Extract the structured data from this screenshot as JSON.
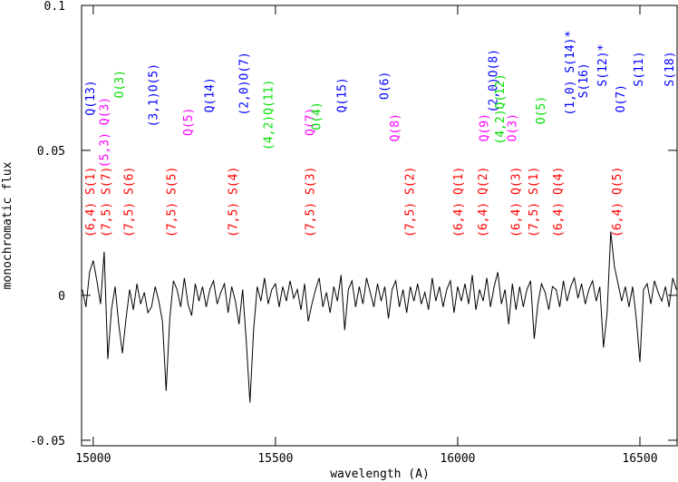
{
  "chart_data": {
    "type": "line",
    "x_label": "wavelength (A)",
    "y_label": "monochromatic flux",
    "xlim": [
      14968,
      16602
    ],
    "ylim": [
      -0.0519,
      0.1
    ],
    "xticks": [
      15000,
      15500,
      16000,
      16500
    ],
    "yticks": [
      -0.05,
      0,
      0.05,
      0.1
    ],
    "line_color": "#000000",
    "x": [
      14970,
      14980,
      14990,
      15000,
      15010,
      15020,
      15030,
      15040,
      15050,
      15060,
      15070,
      15080,
      15090,
      15100,
      15110,
      15120,
      15130,
      15140,
      15150,
      15160,
      15170,
      15180,
      15190,
      15200,
      15210,
      15220,
      15230,
      15240,
      15250,
      15260,
      15270,
      15280,
      15290,
      15300,
      15310,
      15320,
      15330,
      15340,
      15350,
      15360,
      15370,
      15380,
      15390,
      15400,
      15410,
      15420,
      15430,
      15440,
      15450,
      15460,
      15470,
      15480,
      15490,
      15500,
      15510,
      15520,
      15530,
      15540,
      15550,
      15560,
      15570,
      15580,
      15590,
      15600,
      15610,
      15620,
      15630,
      15640,
      15650,
      15660,
      15670,
      15680,
      15690,
      15700,
      15710,
      15720,
      15730,
      15740,
      15750,
      15760,
      15770,
      15780,
      15790,
      15800,
      15810,
      15820,
      15830,
      15840,
      15850,
      15860,
      15870,
      15880,
      15890,
      15900,
      15910,
      15920,
      15930,
      15940,
      15950,
      15960,
      15970,
      15980,
      15990,
      16000,
      16010,
      16020,
      16030,
      16040,
      16050,
      16060,
      16070,
      16080,
      16090,
      16100,
      16110,
      16120,
      16130,
      16140,
      16150,
      16160,
      16170,
      16180,
      16190,
      16200,
      16210,
      16220,
      16230,
      16240,
      16250,
      16260,
      16270,
      16280,
      16290,
      16300,
      16310,
      16320,
      16330,
      16340,
      16350,
      16360,
      16370,
      16380,
      16390,
      16400,
      16410,
      16420,
      16430,
      16440,
      16450,
      16460,
      16470,
      16480,
      16490,
      16500,
      16510,
      16520,
      16530,
      16540,
      16550,
      16560,
      16570,
      16580,
      16590,
      16600
    ],
    "values": [
      0.002,
      -0.004,
      0.008,
      0.012,
      0.005,
      -0.003,
      0.015,
      -0.022,
      -0.005,
      0.003,
      -0.01,
      -0.02,
      -0.008,
      0.002,
      -0.005,
      0.004,
      -0.003,
      0.001,
      -0.006,
      -0.004,
      0.003,
      -0.002,
      -0.009,
      -0.033,
      -0.008,
      0.005,
      0.002,
      -0.004,
      0.006,
      -0.003,
      -0.007,
      0.004,
      -0.002,
      0.003,
      -0.004,
      0.002,
      0.005,
      -0.003,
      0.001,
      0.004,
      -0.006,
      0.003,
      -0.002,
      -0.01,
      0.002,
      -0.016,
      -0.037,
      -0.012,
      0.003,
      -0.002,
      0.006,
      -0.003,
      0.002,
      0.004,
      -0.004,
      0.003,
      -0.002,
      0.005,
      -0.001,
      0.002,
      -0.005,
      0.004,
      -0.009,
      -0.003,
      0.002,
      0.006,
      -0.004,
      0.001,
      -0.006,
      0.003,
      -0.002,
      0.007,
      -0.012,
      0.002,
      0.005,
      -0.004,
      0.003,
      -0.003,
      0.006,
      0.001,
      -0.004,
      0.004,
      -0.002,
      0.003,
      -0.008,
      0.002,
      0.005,
      -0.004,
      0.002,
      -0.006,
      0.003,
      -0.002,
      0.004,
      -0.003,
      0.001,
      -0.005,
      0.006,
      -0.002,
      0.003,
      -0.004,
      0.002,
      0.005,
      -0.006,
      0.003,
      -0.002,
      0.004,
      -0.003,
      0.007,
      -0.005,
      0.002,
      -0.002,
      0.006,
      -0.004,
      0.003,
      0.008,
      -0.003,
      0.002,
      -0.01,
      0.004,
      -0.005,
      0.003,
      -0.004,
      0.002,
      0.005,
      -0.015,
      -0.003,
      0.004,
      0.001,
      -0.005,
      0.003,
      0.002,
      -0.004,
      0.005,
      -0.002,
      0.003,
      0.006,
      -0.001,
      0.004,
      -0.003,
      0.002,
      0.005,
      -0.002,
      0.003,
      -0.018,
      -0.006,
      0.022,
      0.01,
      0.004,
      -0.002,
      0.003,
      -0.004,
      0.003,
      -0.008,
      -0.023,
      0.002,
      0.004,
      -0.003,
      0.005,
      0.001,
      -0.002,
      0.003,
      -0.004,
      0.006,
      0.002
    ],
    "annotations": [
      {
        "text": "(6,4) S(1)",
        "x": 14993,
        "y": 0.02,
        "color": "#ff0000"
      },
      {
        "text": "(7,5) S(7)",
        "x": 15037,
        "y": 0.02,
        "color": "#ff0000"
      },
      {
        "text": "(7,5) S(6)",
        "x": 15099,
        "y": 0.02,
        "color": "#ff0000"
      },
      {
        "text": "(7,5) S(5)",
        "x": 15216,
        "y": 0.02,
        "color": "#ff0000"
      },
      {
        "text": "(7,5) S(4)",
        "x": 15385,
        "y": 0.02,
        "color": "#ff0000"
      },
      {
        "text": "(7,5) S(3)",
        "x": 15596,
        "y": 0.02,
        "color": "#ff0000"
      },
      {
        "text": "(7,5) S(2)",
        "x": 15869,
        "y": 0.02,
        "color": "#ff0000"
      },
      {
        "text": "(6,4) Q(1)",
        "x": 16003,
        "y": 0.02,
        "color": "#ff0000"
      },
      {
        "text": "(6,4) Q(2)",
        "x": 16070,
        "y": 0.02,
        "color": "#ff0000"
      },
      {
        "text": "(6,4) Q(3)",
        "x": 16160,
        "y": 0.02,
        "color": "#ff0000"
      },
      {
        "text": "(7,5) S(1)",
        "x": 16209,
        "y": 0.02,
        "color": "#ff0000"
      },
      {
        "text": "(6,4) Q(4)",
        "x": 16276,
        "y": 0.02,
        "color": "#ff0000"
      },
      {
        "text": "(6,4) Q(5)",
        "x": 16438,
        "y": 0.02,
        "color": "#ff0000"
      },
      {
        "text": "Q(13)",
        "x": 14993,
        "y": 0.062,
        "color": "#0000ff"
      },
      {
        "text": "(3,1)O(5)",
        "x": 15166,
        "y": 0.058,
        "color": "#0000ff"
      },
      {
        "text": "Q(14)",
        "x": 15320,
        "y": 0.063,
        "color": "#0000ff"
      },
      {
        "text": "(2,0)O(7)",
        "x": 15415,
        "y": 0.062,
        "color": "#0000ff"
      },
      {
        "text": "Q(15)",
        "x": 15683,
        "y": 0.063,
        "color": "#0000ff"
      },
      {
        "text": "O(6)",
        "x": 15800,
        "y": 0.0675,
        "color": "#0000ff"
      },
      {
        "text": "(2,0)O(8)",
        "x": 16098,
        "y": 0.063,
        "color": "#0000ff"
      },
      {
        "text": "(1,0) S(14)*",
        "x": 16309,
        "y": 0.062,
        "color": "#0000ff"
      },
      {
        "text": "S(16)",
        "x": 16346,
        "y": 0.068,
        "color": "#0000ff"
      },
      {
        "text": "S(12)*",
        "x": 16398,
        "y": 0.072,
        "color": "#0000ff"
      },
      {
        "text": "O(7)",
        "x": 16448,
        "y": 0.063,
        "color": "#0000ff"
      },
      {
        "text": "S(11)",
        "x": 16497,
        "y": 0.072,
        "color": "#0000ff"
      },
      {
        "text": "S(18)",
        "x": 16582,
        "y": 0.072,
        "color": "#0000ff"
      },
      {
        "text": "(5,3) Q(3)",
        "x": 15032,
        "y": 0.044,
        "color": "#ff00ff"
      },
      {
        "text": "Q(5)",
        "x": 15261,
        "y": 0.055,
        "color": "#ff00ff"
      },
      {
        "text": "Q(7)",
        "x": 15596,
        "y": 0.055,
        "color": "#ff00ff"
      },
      {
        "text": "Q(8)",
        "x": 15829,
        "y": 0.053,
        "color": "#ff00ff"
      },
      {
        "text": "Q(9)",
        "x": 16073,
        "y": 0.053,
        "color": "#ff00ff"
      },
      {
        "text": "O(3)",
        "x": 16150,
        "y": 0.053,
        "color": "#ff00ff"
      },
      {
        "text": "O(3)",
        "x": 15072,
        "y": 0.068,
        "color": "#00e000"
      },
      {
        "text": "(4,2)Q(11)",
        "x": 15482,
        "y": 0.05,
        "color": "#00e000"
      },
      {
        "text": "O(4)",
        "x": 15613,
        "y": 0.057,
        "color": "#00e000"
      },
      {
        "text": "(4,2)Q(12)",
        "x": 16117,
        "y": 0.052,
        "color": "#00e000"
      },
      {
        "text": "O(5)",
        "x": 16229,
        "y": 0.059,
        "color": "#00e000"
      }
    ]
  }
}
